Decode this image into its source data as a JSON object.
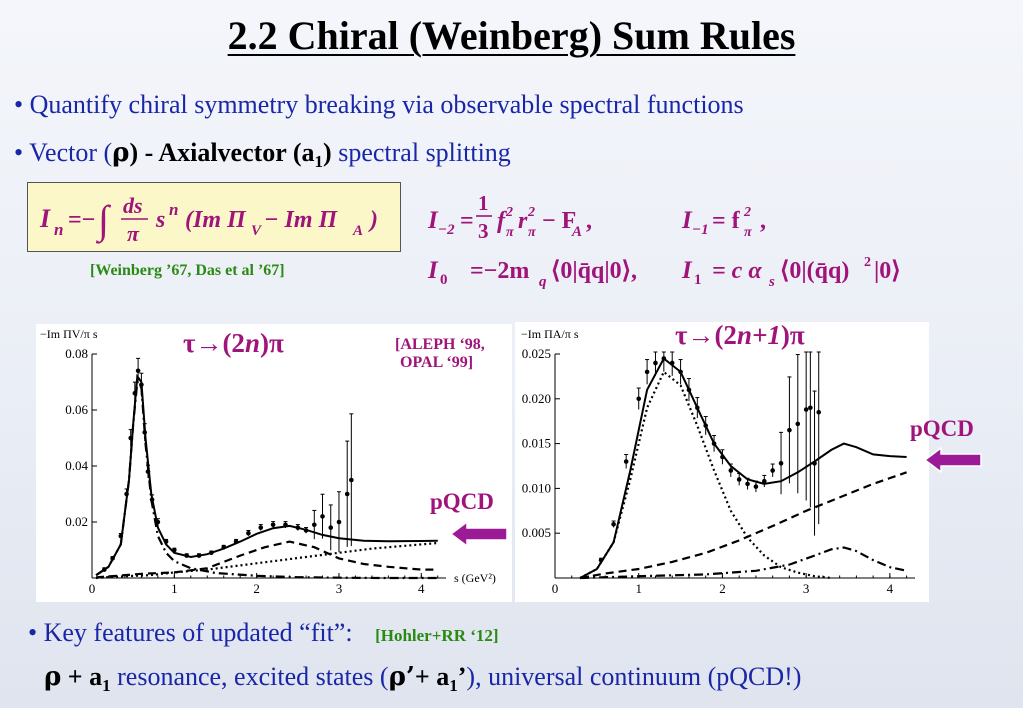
{
  "slide": {
    "title": "2.2 Chiral (Weinberg) Sum Rules",
    "bullets": [
      {
        "marker": "•",
        "text": "Quantify chiral symmetry breaking via observable spectral functions"
      },
      {
        "marker": "•",
        "pre": "Vector (",
        "rho": "ρ",
        "mid": ") - Axialvector ",
        "a1": "(a",
        "a1sub": "1",
        "a1close": ")",
        "post": "  spectral splitting"
      }
    ],
    "formula_main": "I_n = −∫ ds/π sⁿ (Im Π_V − Im Π_A)",
    "weinberg_cite": "[Weinberg ’67, Das et al ’67]",
    "sum_rules": {
      "row1_left": "I₋₂ = (1/3) f²π r²π − F_A ,",
      "row1_right": "I₋₁ = f²π ,",
      "row2_left": "I₀ = −2m_q⟨0|q̄q|0⟩,",
      "row2_right": "I₁ = c αs ⟨0|(q̄q)²|0⟩"
    },
    "left_chart_label": {
      "pre": "τ→(2",
      "n": "n",
      "post": ")π"
    },
    "right_chart_label": {
      "pre": "τ→(2",
      "n": "n+1",
      "post": ")π"
    },
    "aleph_ref_line1": "[ALEPH ‘98,",
    "aleph_ref_line2": "OPAL ‘99]",
    "pqcd_left": "pQCD",
    "pqcd_right": "pQCD",
    "key_features": {
      "marker": "•",
      "text": "Key features of updated “fit”:",
      "cite": "[Hohler+RR ‘12]"
    },
    "last_line": {
      "rho": "ρ",
      "plus": " + ",
      "a": "a",
      "sub": "1",
      "text1": " resonance,  excited states (",
      "rho2": "ρ’",
      "plus2": "+ ",
      "a2": "a",
      "sub2": "1",
      "prime2": "’",
      "text2": "), universal continuum (pQCD!)"
    }
  },
  "colors": {
    "bullet_blue": "#1a26a8",
    "magenta": "#a0137a",
    "cite_green": "#2a8a14",
    "box_yellow": "#fbf7c9"
  },
  "chart_data": [
    {
      "type": "line",
      "name": "vector",
      "ylabel": "−Im ΠV/π s",
      "xlabel": "s (GeV²)",
      "xlim": [
        0,
        4.3
      ],
      "ylim": [
        0,
        0.08
      ],
      "xticks": [
        0,
        1,
        2,
        3,
        4
      ],
      "yticks": [
        0.02,
        0.04,
        0.06,
        0.08
      ],
      "ytick_labels": [
        "0.02",
        "0.04",
        "0.06",
        "0.08"
      ],
      "series": [
        {
          "style": "solid",
          "x": [
            0.05,
            0.2,
            0.35,
            0.45,
            0.5,
            0.55,
            0.6,
            0.65,
            0.72,
            0.8,
            0.9,
            1.0,
            1.2,
            1.4,
            1.6,
            1.8,
            2.0,
            2.2,
            2.4,
            2.6,
            2.8,
            3.0,
            3.3,
            3.6,
            4.0,
            4.2
          ],
          "y": [
            0.001,
            0.004,
            0.012,
            0.035,
            0.055,
            0.072,
            0.07,
            0.05,
            0.03,
            0.018,
            0.012,
            0.009,
            0.0075,
            0.0085,
            0.0105,
            0.013,
            0.0158,
            0.0178,
            0.0186,
            0.0172,
            0.0154,
            0.0142,
            0.0133,
            0.0131,
            0.0132,
            0.0133
          ]
        },
        {
          "style": "dashed",
          "x": [
            0.05,
            0.3,
            0.6,
            1.0,
            1.4,
            1.8,
            2.1,
            2.4,
            2.7,
            3.0,
            3.3,
            3.6,
            4.0,
            4.2
          ],
          "y": [
            0.0002,
            0.0008,
            0.0015,
            0.002,
            0.0035,
            0.008,
            0.011,
            0.013,
            0.011,
            0.007,
            0.005,
            0.004,
            0.003,
            0.003
          ]
        },
        {
          "style": "dotted",
          "x": [
            0.05,
            0.3,
            0.7,
            1.0,
            1.4,
            1.8,
            2.2,
            2.6,
            3.0,
            3.4,
            3.8,
            4.2
          ],
          "y": [
            0.0,
            0.0005,
            0.001,
            0.002,
            0.003,
            0.0045,
            0.006,
            0.0075,
            0.009,
            0.0105,
            0.0115,
            0.0125
          ]
        },
        {
          "style": "dashdot",
          "x": [
            0.05,
            0.2,
            0.35,
            0.45,
            0.5,
            0.55,
            0.6,
            0.65,
            0.72,
            0.8,
            0.9,
            1.0,
            1.2,
            1.5,
            2.0,
            2.5,
            3.0,
            3.5,
            4.0,
            4.2
          ],
          "y": [
            0.001,
            0.004,
            0.012,
            0.035,
            0.055,
            0.07,
            0.068,
            0.048,
            0.028,
            0.015,
            0.009,
            0.006,
            0.0035,
            0.0018,
            0.0008,
            0.0003,
            0.0001,
            0.0,
            0.0,
            0.0
          ]
        }
      ],
      "points": {
        "x": [
          0.15,
          0.25,
          0.35,
          0.42,
          0.47,
          0.52,
          0.56,
          0.6,
          0.64,
          0.68,
          0.73,
          0.8,
          0.9,
          1.0,
          1.15,
          1.3,
          1.45,
          1.6,
          1.75,
          1.9,
          2.05,
          2.2,
          2.35,
          2.5,
          2.6,
          2.7,
          2.8,
          2.9,
          3.0,
          3.1,
          3.15
        ],
        "y": [
          0.003,
          0.007,
          0.015,
          0.03,
          0.05,
          0.066,
          0.074,
          0.069,
          0.052,
          0.038,
          0.028,
          0.02,
          0.013,
          0.01,
          0.008,
          0.008,
          0.009,
          0.011,
          0.013,
          0.016,
          0.018,
          0.019,
          0.019,
          0.018,
          0.017,
          0.019,
          0.022,
          0.018,
          0.02,
          0.03,
          0.035
        ]
      }
    },
    {
      "type": "line",
      "name": "axialvector",
      "ylabel": "−Im ΠA/π s",
      "xlim": [
        0,
        4.3
      ],
      "ylim": [
        0,
        0.025
      ],
      "xticks": [
        0,
        1,
        2,
        3,
        4
      ],
      "yticks": [
        0.005,
        0.01,
        0.015,
        0.02,
        0.025
      ],
      "ytick_labels": [
        "0.005",
        "0.010",
        "0.015",
        "0.020",
        "0.025"
      ],
      "series": [
        {
          "style": "solid",
          "x": [
            0.3,
            0.5,
            0.7,
            0.9,
            1.1,
            1.3,
            1.5,
            1.7,
            1.9,
            2.1,
            2.3,
            2.5,
            2.7,
            2.9,
            3.1,
            3.3,
            3.45,
            3.6,
            3.8,
            4.0,
            4.2
          ],
          "y": [
            0.0,
            0.001,
            0.004,
            0.012,
            0.021,
            0.0245,
            0.023,
            0.019,
            0.015,
            0.0125,
            0.011,
            0.0105,
            0.0108,
            0.0118,
            0.013,
            0.0143,
            0.015,
            0.0146,
            0.0138,
            0.0136,
            0.0135
          ]
        },
        {
          "style": "dashed",
          "x": [
            0.3,
            0.6,
            1.0,
            1.4,
            1.8,
            2.2,
            2.6,
            3.0,
            3.4,
            3.8,
            4.2
          ],
          "y": [
            0.0,
            0.0005,
            0.001,
            0.0018,
            0.0028,
            0.0042,
            0.0058,
            0.0075,
            0.009,
            0.0105,
            0.0118
          ]
        },
        {
          "style": "dotted",
          "x": [
            0.3,
            0.5,
            0.7,
            0.9,
            1.1,
            1.3,
            1.5,
            1.7,
            1.9,
            2.1,
            2.3,
            2.5,
            2.7,
            2.9,
            3.1,
            3.3
          ],
          "y": [
            0.0,
            0.001,
            0.004,
            0.011,
            0.019,
            0.023,
            0.0215,
            0.017,
            0.012,
            0.0075,
            0.0045,
            0.0025,
            0.0012,
            0.0006,
            0.0002,
            0.0
          ]
        },
        {
          "style": "dashdot",
          "x": [
            0.3,
            1.0,
            1.8,
            2.4,
            2.8,
            3.1,
            3.3,
            3.45,
            3.6,
            3.8,
            4.0,
            4.2
          ],
          "y": [
            0.0,
            0.0002,
            0.0004,
            0.0008,
            0.0015,
            0.0025,
            0.0032,
            0.0034,
            0.003,
            0.002,
            0.0012,
            0.0008
          ]
        }
      ],
      "points": {
        "x": [
          0.55,
          0.7,
          0.85,
          1.0,
          1.1,
          1.2,
          1.3,
          1.4,
          1.5,
          1.6,
          1.7,
          1.8,
          1.9,
          2.0,
          2.1,
          2.2,
          2.3,
          2.4,
          2.5,
          2.6,
          2.7,
          2.8,
          2.9,
          3.0,
          3.05,
          3.1,
          3.15
        ],
        "y": [
          0.002,
          0.006,
          0.013,
          0.02,
          0.023,
          0.024,
          0.0245,
          0.024,
          0.023,
          0.021,
          0.019,
          0.017,
          0.015,
          0.0135,
          0.012,
          0.011,
          0.0105,
          0.0102,
          0.0108,
          0.012,
          0.0128,
          0.0165,
          0.0172,
          0.0188,
          0.019,
          0.0128,
          0.0185
        ]
      }
    }
  ]
}
